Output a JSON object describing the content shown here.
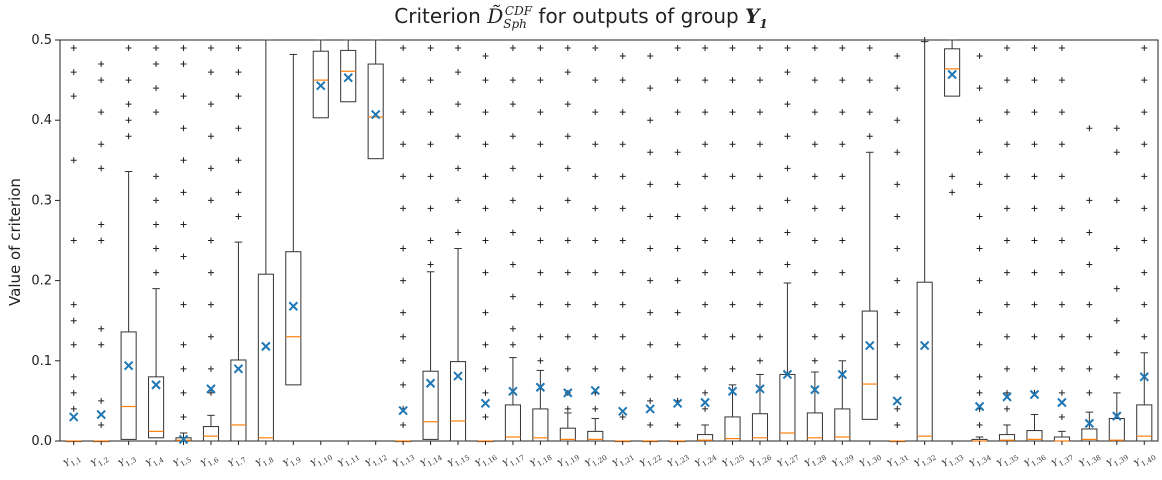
{
  "chart_data": {
    "type": "box",
    "title": {
      "prefix": "Criterion",
      "symbol": "D̃",
      "superscript": "CDF",
      "subscript": "Sph",
      "middle": "for outputs of group",
      "group": "Y",
      "group_sub": "1"
    },
    "ylabel": "Value of criterion",
    "xlabel": "",
    "ylim": [
      0,
      0.5
    ],
    "yticks": [
      "0.0",
      "0.1",
      "0.2",
      "0.3",
      "0.4",
      "0.5"
    ],
    "ytick_values": [
      0,
      0.1,
      0.2,
      0.3,
      0.4,
      0.5
    ],
    "grid": false,
    "colors": {
      "box": "#333333",
      "median": "#ff7f0e",
      "mean": "#1f77b4",
      "flier": "#222222"
    },
    "categories": [
      "Y1,1",
      "Y1,2",
      "Y1,3",
      "Y1,4",
      "Y1,5",
      "Y1,6",
      "Y1,7",
      "Y1,8",
      "Y1,9",
      "Y1,10",
      "Y1,11",
      "Y1,12",
      "Y1,13",
      "Y1,14",
      "Y1,15",
      "Y1,16",
      "Y1,17",
      "Y1,18",
      "Y1,19",
      "Y1,20",
      "Y1,21",
      "Y1,22",
      "Y1,23",
      "Y1,24",
      "Y1,25",
      "Y1,26",
      "Y1,27",
      "Y1,28",
      "Y1,29",
      "Y1,30",
      "Y1,31",
      "Y1,32",
      "Y1,33",
      "Y1,34",
      "Y1,35",
      "Y1,36",
      "Y1,37",
      "Y1,38",
      "Y1,39",
      "Y1,40"
    ],
    "boxes": [
      {
        "q1": 0,
        "q3": 0,
        "median": 0,
        "mean": 0.03,
        "whislo": 0,
        "whishi": 0,
        "fliers": [
          0.49,
          0.46,
          0.43,
          0.35,
          0.25,
          0.17,
          0.15,
          0.12,
          0.08,
          0.06,
          0.04
        ]
      },
      {
        "q1": 0,
        "q3": 0,
        "median": 0,
        "mean": 0.033,
        "whislo": 0,
        "whishi": 0,
        "fliers": [
          0.47,
          0.45,
          0.41,
          0.37,
          0.34,
          0.27,
          0.25,
          0.14,
          0.12,
          0.05,
          0.02
        ]
      },
      {
        "q1": 0.002,
        "q3": 0.136,
        "median": 0.043,
        "mean": 0.094,
        "whislo": 0,
        "whishi": 0.336,
        "fliers": [
          0.49,
          0.45,
          0.42,
          0.4,
          0.38
        ]
      },
      {
        "q1": 0.004,
        "q3": 0.08,
        "median": 0.012,
        "mean": 0.07,
        "whislo": 0,
        "whishi": 0.19,
        "fliers": [
          0.49,
          0.47,
          0.44,
          0.41,
          0.33,
          0.3,
          0.27,
          0.24,
          0.21
        ]
      },
      {
        "q1": 0,
        "q3": 0.004,
        "median": 0.001,
        "mean": 0.002,
        "whislo": 0,
        "whishi": 0.01,
        "fliers": [
          0.49,
          0.47,
          0.43,
          0.39,
          0.35,
          0.31,
          0.27,
          0.23,
          0.17,
          0.12,
          0.09,
          0.06,
          0.03
        ]
      },
      {
        "q1": 0,
        "q3": 0.018,
        "median": 0.006,
        "mean": 0.065,
        "whislo": 0,
        "whishi": 0.032,
        "fliers": [
          0.49,
          0.46,
          0.42,
          0.38,
          0.34,
          0.3,
          0.25,
          0.21,
          0.17,
          0.13,
          0.09,
          0.06
        ]
      },
      {
        "q1": 0,
        "q3": 0.101,
        "median": 0.02,
        "mean": 0.09,
        "whislo": 0,
        "whishi": 0.248,
        "fliers": [
          0.49,
          0.46,
          0.43,
          0.39,
          0.35,
          0.31,
          0.28
        ]
      },
      {
        "q1": 0,
        "q3": 0.208,
        "median": 0.004,
        "mean": 0.118,
        "whislo": 0,
        "whishi": 0.5,
        "fliers": []
      },
      {
        "q1": 0.07,
        "q3": 0.236,
        "median": 0.13,
        "mean": 0.168,
        "whislo": 0,
        "whishi": 0.482,
        "fliers": []
      },
      {
        "q1": 0.403,
        "q3": 0.486,
        "median": 0.45,
        "mean": 0.443,
        "whislo": 0.31,
        "whishi": 0.5,
        "fliers": []
      },
      {
        "q1": 0.423,
        "q3": 0.487,
        "median": 0.461,
        "mean": 0.453,
        "whislo": 0.357,
        "whishi": 0.5,
        "fliers": []
      },
      {
        "q1": 0.352,
        "q3": 0.47,
        "median": 0.404,
        "mean": 0.407,
        "whislo": 0.251,
        "whishi": 0.5,
        "fliers": []
      },
      {
        "q1": 0,
        "q3": 0,
        "median": 0,
        "mean": 0.038,
        "whislo": 0,
        "whishi": 0,
        "fliers": [
          0.49,
          0.45,
          0.41,
          0.37,
          0.33,
          0.29,
          0.24,
          0.2,
          0.16,
          0.13,
          0.1,
          0.07,
          0.04,
          0.02
        ]
      },
      {
        "q1": 0.002,
        "q3": 0.087,
        "median": 0.024,
        "mean": 0.072,
        "whislo": 0,
        "whishi": 0.211,
        "fliers": [
          0.49,
          0.45,
          0.41,
          0.37,
          0.33,
          0.29,
          0.25,
          0.22
        ]
      },
      {
        "q1": 0,
        "q3": 0.099,
        "median": 0.025,
        "mean": 0.081,
        "whislo": 0,
        "whishi": 0.24,
        "fliers": [
          0.49,
          0.46,
          0.42,
          0.38,
          0.34,
          0.3,
          0.26
        ]
      },
      {
        "q1": 0,
        "q3": 0,
        "median": 0,
        "mean": 0.047,
        "whislo": 0,
        "whishi": 0,
        "fliers": [
          0.48,
          0.45,
          0.41,
          0.37,
          0.33,
          0.29,
          0.25,
          0.21,
          0.16,
          0.12,
          0.09,
          0.06,
          0.03
        ]
      },
      {
        "q1": 0,
        "q3": 0.045,
        "median": 0.005,
        "mean": 0.062,
        "whislo": 0,
        "whishi": 0.104,
        "fliers": [
          0.49,
          0.45,
          0.42,
          0.38,
          0.34,
          0.3,
          0.26,
          0.22,
          0.18,
          0.14,
          0.12
        ]
      },
      {
        "q1": 0,
        "q3": 0.04,
        "median": 0.004,
        "mean": 0.067,
        "whislo": 0,
        "whishi": 0.088,
        "fliers": [
          0.49,
          0.45,
          0.41,
          0.37,
          0.33,
          0.29,
          0.25,
          0.21,
          0.17,
          0.13,
          0.1
        ]
      },
      {
        "q1": 0,
        "q3": 0.016,
        "median": 0.002,
        "mean": 0.06,
        "whislo": 0,
        "whishi": 0.035,
        "fliers": [
          0.49,
          0.46,
          0.42,
          0.38,
          0.34,
          0.3,
          0.25,
          0.21,
          0.17,
          0.13,
          0.09,
          0.06,
          0.04
        ]
      },
      {
        "q1": 0,
        "q3": 0.012,
        "median": 0.002,
        "mean": 0.063,
        "whislo": 0,
        "whishi": 0.028,
        "fliers": [
          0.49,
          0.45,
          0.41,
          0.37,
          0.33,
          0.29,
          0.25,
          0.21,
          0.17,
          0.13,
          0.09,
          0.06,
          0.04
        ]
      },
      {
        "q1": 0,
        "q3": 0,
        "median": 0,
        "mean": 0.037,
        "whislo": 0,
        "whishi": 0,
        "fliers": [
          0.48,
          0.45,
          0.41,
          0.37,
          0.33,
          0.29,
          0.25,
          0.21,
          0.17,
          0.13,
          0.09,
          0.06,
          0.03
        ]
      },
      {
        "q1": 0,
        "q3": 0,
        "median": 0,
        "mean": 0.04,
        "whislo": 0,
        "whishi": 0,
        "fliers": [
          0.48,
          0.44,
          0.4,
          0.36,
          0.32,
          0.28,
          0.24,
          0.2,
          0.16,
          0.12,
          0.08,
          0.05,
          0.02
        ]
      },
      {
        "q1": 0,
        "q3": 0,
        "median": 0,
        "mean": 0.047,
        "whislo": 0,
        "whishi": 0,
        "fliers": [
          0.49,
          0.45,
          0.41,
          0.36,
          0.32,
          0.28,
          0.24,
          0.2,
          0.16,
          0.12,
          0.08,
          0.05,
          0.02
        ]
      },
      {
        "q1": 0,
        "q3": 0.008,
        "median": 0.001,
        "mean": 0.048,
        "whislo": 0,
        "whishi": 0.02,
        "fliers": [
          0.49,
          0.45,
          0.41,
          0.37,
          0.33,
          0.29,
          0.25,
          0.21,
          0.17,
          0.13,
          0.09,
          0.06,
          0.04
        ]
      },
      {
        "q1": 0,
        "q3": 0.03,
        "median": 0.003,
        "mean": 0.062,
        "whislo": 0,
        "whishi": 0.07,
        "fliers": [
          0.49,
          0.45,
          0.41,
          0.37,
          0.33,
          0.29,
          0.25,
          0.21,
          0.17,
          0.13,
          0.09
        ]
      },
      {
        "q1": 0,
        "q3": 0.034,
        "median": 0.004,
        "mean": 0.065,
        "whislo": 0,
        "whishi": 0.083,
        "fliers": [
          0.49,
          0.45,
          0.41,
          0.37,
          0.33,
          0.29,
          0.25,
          0.21,
          0.17,
          0.13,
          0.1
        ]
      },
      {
        "q1": 0,
        "q3": 0.083,
        "median": 0.01,
        "mean": 0.083,
        "whislo": 0,
        "whishi": 0.197,
        "fliers": [
          0.49,
          0.46,
          0.42,
          0.38,
          0.34,
          0.3,
          0.26,
          0.22
        ]
      },
      {
        "q1": 0,
        "q3": 0.035,
        "median": 0.004,
        "mean": 0.064,
        "whislo": 0,
        "whishi": 0.086,
        "fliers": [
          0.49,
          0.45,
          0.41,
          0.37,
          0.33,
          0.29,
          0.25,
          0.21,
          0.17,
          0.13,
          0.1
        ]
      },
      {
        "q1": 0,
        "q3": 0.04,
        "median": 0.005,
        "mean": 0.083,
        "whislo": 0,
        "whishi": 0.1,
        "fliers": [
          0.49,
          0.45,
          0.41,
          0.37,
          0.33,
          0.29,
          0.25,
          0.21,
          0.17,
          0.13
        ]
      },
      {
        "q1": 0.027,
        "q3": 0.162,
        "median": 0.071,
        "mean": 0.119,
        "whislo": 0,
        "whishi": 0.36,
        "fliers": [
          0.49,
          0.45,
          0.41,
          0.38
        ]
      },
      {
        "q1": 0,
        "q3": 0,
        "median": 0,
        "mean": 0.05,
        "whislo": 0,
        "whishi": 0,
        "fliers": [
          0.48,
          0.44,
          0.4,
          0.36,
          0.32,
          0.28,
          0.24,
          0.2,
          0.16,
          0.12,
          0.08,
          0.04,
          0.02
        ]
      },
      {
        "q1": 0,
        "q3": 0.198,
        "median": 0.006,
        "mean": 0.119,
        "whislo": 0,
        "whishi": 0.498,
        "fliers": [
          0.5
        ]
      },
      {
        "q1": 0.43,
        "q3": 0.489,
        "median": 0.464,
        "mean": 0.457,
        "whislo": 0.346,
        "whishi": 0.5,
        "fliers": [
          0.33,
          0.31
        ]
      },
      {
        "q1": 0,
        "q3": 0.002,
        "median": 0,
        "mean": 0.043,
        "whislo": 0,
        "whishi": 0.005,
        "fliers": [
          0.48,
          0.44,
          0.4,
          0.36,
          0.32,
          0.28,
          0.24,
          0.2,
          0.16,
          0.12,
          0.08,
          0.06,
          0.04,
          0.02
        ]
      },
      {
        "q1": 0,
        "q3": 0.008,
        "median": 0.001,
        "mean": 0.055,
        "whislo": 0,
        "whishi": 0.02,
        "fliers": [
          0.49,
          0.45,
          0.41,
          0.37,
          0.33,
          0.29,
          0.25,
          0.21,
          0.17,
          0.13,
          0.09,
          0.06,
          0.04
        ]
      },
      {
        "q1": 0,
        "q3": 0.013,
        "median": 0.002,
        "mean": 0.058,
        "whislo": 0,
        "whishi": 0.033,
        "fliers": [
          0.49,
          0.45,
          0.41,
          0.37,
          0.33,
          0.29,
          0.25,
          0.21,
          0.17,
          0.13,
          0.09,
          0.06
        ]
      },
      {
        "q1": 0,
        "q3": 0.005,
        "median": 0,
        "mean": 0.048,
        "whislo": 0,
        "whishi": 0.012,
        "fliers": [
          0.49,
          0.45,
          0.41,
          0.37,
          0.33,
          0.29,
          0.25,
          0.21,
          0.17,
          0.13,
          0.09,
          0.06,
          0.03
        ]
      },
      {
        "q1": 0,
        "q3": 0.015,
        "median": 0.002,
        "mean": 0.022,
        "whislo": 0,
        "whishi": 0.036,
        "fliers": [
          0.39,
          0.3,
          0.26,
          0.22,
          0.17,
          0.13,
          0.09,
          0.06
        ]
      },
      {
        "q1": 0,
        "q3": 0.028,
        "median": 0.001,
        "mean": 0.031,
        "whislo": 0,
        "whishi": 0.06,
        "fliers": [
          0.39,
          0.36,
          0.3,
          0.24,
          0.19,
          0.15,
          0.11,
          0.08
        ]
      },
      {
        "q1": 0,
        "q3": 0.045,
        "median": 0.006,
        "mean": 0.08,
        "whislo": 0,
        "whishi": 0.11,
        "fliers": [
          0.49,
          0.45,
          0.41,
          0.37,
          0.33,
          0.29,
          0.25,
          0.21,
          0.17,
          0.13
        ]
      }
    ]
  }
}
